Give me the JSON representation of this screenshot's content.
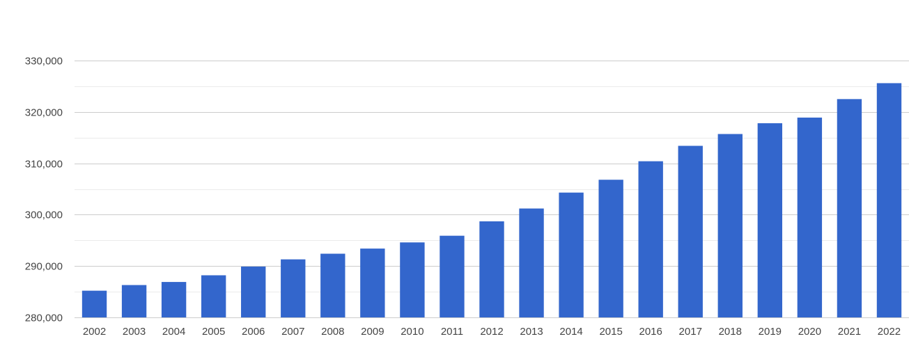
{
  "chart_data": {
    "type": "bar",
    "title": "",
    "xlabel": "",
    "ylabel": "",
    "categories": [
      "2002",
      "2003",
      "2004",
      "2005",
      "2006",
      "2007",
      "2008",
      "2009",
      "2010",
      "2011",
      "2012",
      "2013",
      "2014",
      "2015",
      "2016",
      "2017",
      "2018",
      "2019",
      "2020",
      "2021",
      "2022"
    ],
    "values": [
      285200,
      286300,
      286900,
      288200,
      289900,
      291300,
      292400,
      293400,
      294600,
      295900,
      298700,
      301200,
      304300,
      306800,
      310400,
      313400,
      315700,
      317800,
      318900,
      322500,
      325600
    ],
    "ylim": [
      280000,
      330000
    ],
    "yticks": [
      280000,
      290000,
      300000,
      310000,
      320000,
      330000
    ],
    "ytick_labels": [
      "280,000",
      "290,000",
      "300,000",
      "310,000",
      "320,000",
      "330,000"
    ],
    "grid": true,
    "legend": "none",
    "colors": {
      "bar": "#3366cc",
      "grid_major": "#cccccc",
      "grid_minor": "#ebebeb",
      "text": "#444444"
    }
  }
}
